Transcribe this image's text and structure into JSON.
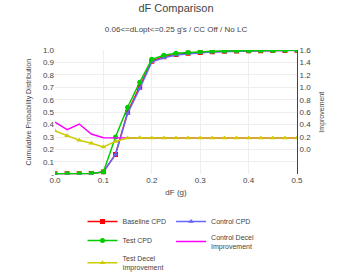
{
  "chart_data": {
    "type": "line",
    "title": "dF Comparison",
    "subtitle": "0.06<=dLopt<=0.25 g's / CC Off / No LC",
    "xlabel": "dF (g)",
    "ylabel": "Cumulative Probability Distribution",
    "y2label": "Improvement",
    "x": [
      0.0,
      0.025,
      0.05,
      0.075,
      0.1,
      0.125,
      0.15,
      0.175,
      0.2,
      0.225,
      0.25,
      0.275,
      0.3,
      0.325,
      0.35,
      0.375,
      0.4,
      0.425,
      0.45,
      0.475,
      0.5
    ],
    "series": [
      {
        "name": "Baseline CPD",
        "color": "#ff0000",
        "marker": "square",
        "values": [
          0.005,
          0.005,
          0.006,
          0.008,
          0.02,
          0.16,
          0.5,
          0.7,
          0.91,
          0.945,
          0.963,
          0.973,
          0.98,
          0.985,
          0.989,
          0.991,
          0.993,
          0.994,
          0.995,
          0.996,
          0.998
        ]
      },
      {
        "name": "Control CPD",
        "color": "#6666ff",
        "marker": "triangle",
        "values": [
          0.005,
          0.005,
          0.006,
          0.008,
          0.02,
          0.16,
          0.49,
          0.69,
          0.905,
          0.938,
          0.96,
          0.971,
          0.978,
          0.983,
          0.987,
          0.99,
          0.992,
          0.993,
          0.994,
          0.995,
          0.997
        ]
      },
      {
        "name": "Test CPD",
        "color": "#00cc00",
        "marker": "circle",
        "values": [
          0.005,
          0.005,
          0.006,
          0.008,
          0.02,
          0.3,
          0.54,
          0.74,
          0.925,
          0.958,
          0.973,
          0.98,
          0.985,
          0.989,
          0.991,
          0.993,
          0.994,
          0.995,
          0.996,
          0.997,
          0.999
        ]
      },
      {
        "name": "Control Decel\nImprovement",
        "color": "#ff00ff",
        "marker": "none",
        "axis": "y2",
        "values": [
          0.44,
          0.32,
          0.41,
          0.25,
          0.19,
          0.185,
          0.185,
          0.185,
          0.185,
          0.185,
          0.185,
          0.185,
          0.185,
          0.185,
          0.185,
          0.185,
          0.185,
          0.185,
          0.185,
          0.185,
          0.185
        ]
      },
      {
        "name": "Test Decel\nImprovement",
        "color": "#cccc00",
        "marker": "triangle",
        "axis": "y2",
        "values": [
          0.3,
          0.22,
          0.15,
          0.1,
          0.04,
          0.13,
          0.185,
          0.19,
          0.185,
          0.185,
          0.185,
          0.185,
          0.185,
          0.185,
          0.185,
          0.185,
          0.185,
          0.185,
          0.185,
          0.185,
          0.185
        ]
      }
    ],
    "xlim": [
      0.0,
      0.5
    ],
    "xticks": [
      {
        "value": 0.0,
        "label": "0.0"
      },
      0.1,
      0.2,
      0.3,
      0.4,
      0.5
    ],
    "ylim": [
      0.0,
      1.0
    ],
    "yticks": [
      {
        "value": 0.0,
        "label": "-"
      },
      0.1,
      0.2,
      0.3,
      0.4,
      0.5,
      0.6,
      0.7,
      0.8,
      0.9,
      {
        "value": 1.0,
        "label": "1.0"
      }
    ],
    "y2lim": [
      -0.4,
      1.6
    ],
    "y2ticks": [
      {
        "value": 0.0,
        "label": "0.0"
      },
      0.2,
      0.4,
      0.6,
      0.8,
      {
        "value": 1.0,
        "label": "1.0"
      },
      1.2,
      1.4,
      1.6
    ],
    "grid": true,
    "legend": "bottom"
  }
}
